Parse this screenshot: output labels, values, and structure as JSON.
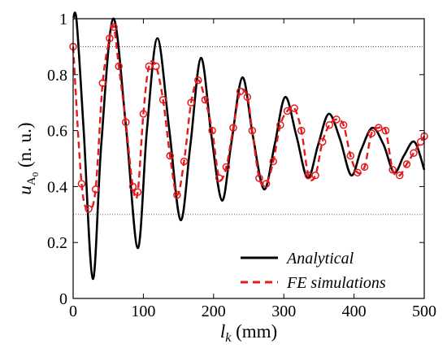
{
  "chart_data": {
    "type": "line",
    "xlabel_main": "l",
    "xlabel_sub": "k",
    "xlabel_unit": " (mm)",
    "ylabel_main": "u",
    "ylabel_sub": "A",
    "ylabel_subsub": "0",
    "ylabel_unit": " (n. u.)",
    "xlim": [
      0,
      500
    ],
    "ylim": [
      0,
      1
    ],
    "xticks": [
      0,
      100,
      200,
      300,
      400,
      500
    ],
    "yticks": [
      0,
      0.2,
      0.4,
      0.6,
      0.8,
      1
    ],
    "xtick_labels": [
      "0",
      "100",
      "200",
      "300",
      "400",
      "500"
    ],
    "ytick_labels": [
      "0",
      "0.2",
      "0.4",
      "0.6",
      "0.8",
      "1"
    ],
    "gridlines_y": [
      0.3,
      0.9
    ],
    "legend_position": "bottom-right",
    "series": [
      {
        "name": "Analytical",
        "color": "#000000",
        "style": "solid",
        "x": [
          0,
          5,
          15,
          28,
          40,
          57,
          75,
          92,
          105,
          120,
          137,
          153,
          167,
          182,
          197,
          212,
          225,
          241,
          256,
          272,
          287,
          302,
          318,
          334,
          349,
          364,
          380,
          396,
          410,
          426,
          442,
          457,
          471,
          486,
          500
        ],
        "y": [
          1.0,
          0.99,
          0.6,
          0.07,
          0.55,
          1.0,
          0.62,
          0.18,
          0.6,
          0.93,
          0.6,
          0.28,
          0.55,
          0.86,
          0.58,
          0.35,
          0.55,
          0.79,
          0.58,
          0.39,
          0.55,
          0.72,
          0.58,
          0.43,
          0.55,
          0.66,
          0.57,
          0.44,
          0.53,
          0.61,
          0.55,
          0.45,
          0.51,
          0.56,
          0.46
        ]
      },
      {
        "name": "FE simulations",
        "color": "#e41a1c",
        "style": "dashed",
        "marker": "circle",
        "x": [
          0,
          12,
          22,
          32,
          42,
          52,
          58,
          65,
          75,
          85,
          92,
          100,
          108,
          118,
          128,
          138,
          148,
          158,
          168,
          178,
          188,
          198,
          208,
          218,
          228,
          238,
          248,
          255,
          265,
          275,
          285,
          295,
          305,
          315,
          325,
          335,
          345,
          355,
          365,
          375,
          385,
          395,
          405,
          415,
          425,
          435,
          445,
          455,
          465,
          475,
          485,
          495,
          500
        ],
        "y": [
          0.9,
          0.41,
          0.32,
          0.39,
          0.77,
          0.93,
          0.97,
          0.83,
          0.63,
          0.4,
          0.38,
          0.66,
          0.83,
          0.83,
          0.71,
          0.51,
          0.37,
          0.49,
          0.7,
          0.78,
          0.71,
          0.6,
          0.43,
          0.47,
          0.61,
          0.74,
          0.72,
          0.6,
          0.43,
          0.41,
          0.49,
          0.62,
          0.67,
          0.68,
          0.6,
          0.44,
          0.44,
          0.56,
          0.62,
          0.64,
          0.62,
          0.51,
          0.45,
          0.47,
          0.59,
          0.61,
          0.6,
          0.46,
          0.44,
          0.48,
          0.52,
          0.56,
          0.58
        ]
      }
    ]
  }
}
